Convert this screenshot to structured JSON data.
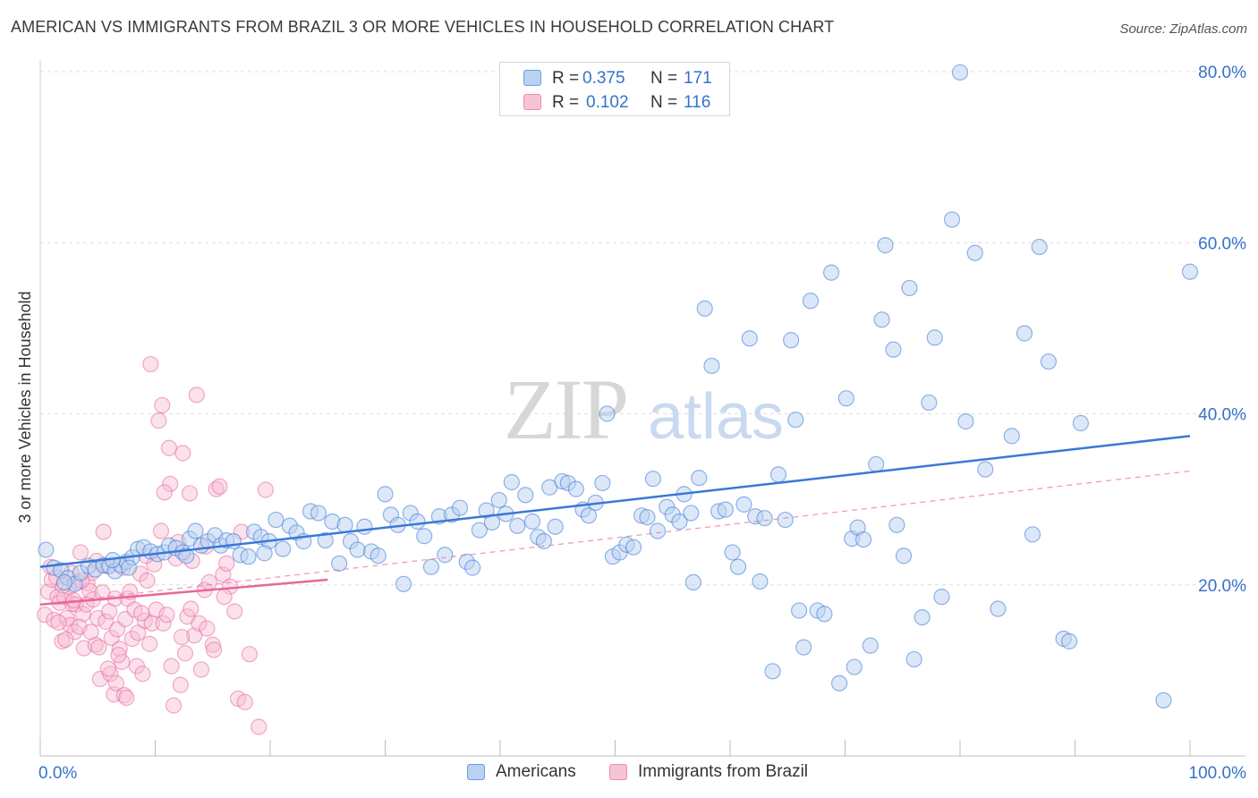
{
  "title": "AMERICAN VS IMMIGRANTS FROM BRAZIL 3 OR MORE VEHICLES IN HOUSEHOLD CORRELATION CHART",
  "source": "Source: ZipAtlas.com",
  "watermark": {
    "zip": "ZIP",
    "atlas": "atlas"
  },
  "legend": {
    "r_label": "R =",
    "n_label": "N =",
    "americans": {
      "r": "0.375",
      "n": "171"
    },
    "brazil": {
      "r": "0.102",
      "n": "116"
    }
  },
  "colors": {
    "blue": "#3a78d6",
    "blue_fill": "#b9d1f2",
    "pink": "#e8679a",
    "pink_fill": "#f6bdd2",
    "value_text": "#3572c9"
  },
  "chart_data": {
    "type": "scatter",
    "ylabel": "3 or more Vehicles in Household",
    "xlabel": "",
    "xlim": [
      0,
      100
    ],
    "ylim": [
      0,
      80
    ],
    "x_tick_labels": [
      "0.0%",
      "100.0%"
    ],
    "y_tick_labels": [
      "20.0%",
      "40.0%",
      "60.0%",
      "80.0%"
    ],
    "y_ticks": [
      20,
      40,
      60,
      80
    ],
    "grid": true,
    "legend_position": "top-center",
    "series": [
      {
        "name": "Americans",
        "color": "#3a78d6",
        "trend": [
          [
            0,
            22.1
          ],
          [
            100,
            37.4
          ]
        ],
        "points": [
          [
            0.5,
            24.1
          ],
          [
            1.2,
            22
          ],
          [
            1.8,
            21.7
          ],
          [
            2.4,
            20.8
          ],
          [
            3,
            20.1
          ],
          [
            3.5,
            21.4
          ],
          [
            4.2,
            22.2
          ],
          [
            4.8,
            21.8
          ],
          [
            5.5,
            22.3
          ],
          [
            6,
            22.2
          ],
          [
            6.5,
            21.6
          ],
          [
            7,
            22.3
          ],
          [
            7.5,
            22.7
          ],
          [
            8,
            23.2
          ],
          [
            8.5,
            24.2
          ],
          [
            9,
            24.4
          ],
          [
            9.6,
            23.9
          ],
          [
            10.2,
            23.6
          ],
          [
            10.8,
            23.8
          ],
          [
            11.2,
            24.6
          ],
          [
            11.8,
            24.3
          ],
          [
            12.4,
            23.8
          ],
          [
            13,
            25.4
          ],
          [
            13.5,
            26.3
          ],
          [
            14,
            24.6
          ],
          [
            14.6,
            25.1
          ],
          [
            15.2,
            25.8
          ],
          [
            15.7,
            24.6
          ],
          [
            16.2,
            25.2
          ],
          [
            16.8,
            25.1
          ],
          [
            17.4,
            23.5
          ],
          [
            18.1,
            23.3
          ],
          [
            18.6,
            26.2
          ],
          [
            19.2,
            25.6
          ],
          [
            19.9,
            25.1
          ],
          [
            20.5,
            27.6
          ],
          [
            21.1,
            24.2
          ],
          [
            21.7,
            26.9
          ],
          [
            22.3,
            26.1
          ],
          [
            22.9,
            25.1
          ],
          [
            23.5,
            28.6
          ],
          [
            24.2,
            28.4
          ],
          [
            24.8,
            25.2
          ],
          [
            25.4,
            27.4
          ],
          [
            26,
            22.5
          ],
          [
            26.5,
            27
          ],
          [
            27,
            25.1
          ],
          [
            27.6,
            24.1
          ],
          [
            28.2,
            26.8
          ],
          [
            28.8,
            23.9
          ],
          [
            29.4,
            23.4
          ],
          [
            30,
            30.6
          ],
          [
            30.5,
            28.2
          ],
          [
            31.1,
            27
          ],
          [
            31.6,
            20.1
          ],
          [
            32.2,
            28.4
          ],
          [
            32.8,
            27.4
          ],
          [
            33.4,
            25.7
          ],
          [
            34,
            22.1
          ],
          [
            34.7,
            28
          ],
          [
            35.2,
            23.5
          ],
          [
            35.8,
            28.2
          ],
          [
            36.5,
            29
          ],
          [
            37.1,
            22.7
          ],
          [
            37.6,
            22
          ],
          [
            38.2,
            26.4
          ],
          [
            38.8,
            28.7
          ],
          [
            39.3,
            27.3
          ],
          [
            39.9,
            29.9
          ],
          [
            40.5,
            28.3
          ],
          [
            41,
            32
          ],
          [
            41.5,
            26.9
          ],
          [
            42.2,
            30.5
          ],
          [
            42.8,
            27.4
          ],
          [
            43.3,
            25.6
          ],
          [
            43.8,
            25.1
          ],
          [
            44.3,
            31.4
          ],
          [
            44.8,
            26.8
          ],
          [
            45.4,
            32.1
          ],
          [
            45.9,
            31.9
          ],
          [
            46.6,
            31.2
          ],
          [
            47.2,
            28.8
          ],
          [
            47.7,
            28.1
          ],
          [
            48.3,
            29.6
          ],
          [
            48.9,
            31.9
          ],
          [
            49.3,
            40
          ],
          [
            49.8,
            23.3
          ],
          [
            50.4,
            23.8
          ],
          [
            51,
            24.7
          ],
          [
            51.6,
            24.4
          ],
          [
            52.3,
            28.1
          ],
          [
            52.8,
            27.9
          ],
          [
            53.3,
            32.4
          ],
          [
            53.7,
            26.3
          ],
          [
            54.5,
            29.1
          ],
          [
            55,
            28.2
          ],
          [
            55.6,
            27.4
          ],
          [
            56,
            30.6
          ],
          [
            56.6,
            28.4
          ],
          [
            56.8,
            20.3
          ],
          [
            57.3,
            32.5
          ],
          [
            57.8,
            52.3
          ],
          [
            58.4,
            45.6
          ],
          [
            59,
            28.6
          ],
          [
            59.6,
            28.8
          ],
          [
            60.2,
            23.8
          ],
          [
            60.7,
            22.1
          ],
          [
            61.2,
            29.4
          ],
          [
            61.7,
            48.8
          ],
          [
            62.2,
            28
          ],
          [
            62.6,
            20.4
          ],
          [
            63,
            27.8
          ],
          [
            63.7,
            9.9
          ],
          [
            64.2,
            32.9
          ],
          [
            64.8,
            27.6
          ],
          [
            65.3,
            48.6
          ],
          [
            65.7,
            39.3
          ],
          [
            66,
            17
          ],
          [
            66.4,
            12.7
          ],
          [
            67,
            53.2
          ],
          [
            67.6,
            17
          ],
          [
            68.2,
            16.6
          ],
          [
            68.8,
            56.5
          ],
          [
            69.5,
            8.5
          ],
          [
            70.1,
            41.8
          ],
          [
            70.6,
            25.4
          ],
          [
            70.8,
            10.4
          ],
          [
            71.1,
            26.7
          ],
          [
            71.6,
            25.3
          ],
          [
            72.2,
            12.9
          ],
          [
            72.7,
            34.1
          ],
          [
            73.2,
            51
          ],
          [
            73.5,
            59.7
          ],
          [
            74.2,
            47.5
          ],
          [
            74.5,
            27
          ],
          [
            75.1,
            23.4
          ],
          [
            75.6,
            54.7
          ],
          [
            76,
            11.3
          ],
          [
            76.7,
            16.2
          ],
          [
            77.3,
            41.3
          ],
          [
            77.8,
            48.9
          ],
          [
            78.4,
            18.6
          ],
          [
            79.3,
            62.7
          ],
          [
            80,
            79.9
          ],
          [
            80.5,
            39.1
          ],
          [
            81.3,
            58.8
          ],
          [
            82.2,
            33.5
          ],
          [
            83.3,
            17.2
          ],
          [
            84.5,
            37.4
          ],
          [
            85.6,
            49.4
          ],
          [
            86.3,
            25.9
          ],
          [
            86.9,
            59.5
          ],
          [
            87.7,
            46.1
          ],
          [
            89,
            13.7
          ],
          [
            89.5,
            13.4
          ],
          [
            90.5,
            38.9
          ],
          [
            97.7,
            6.5
          ],
          [
            100,
            56.6
          ],
          [
            2.1,
            20.3
          ],
          [
            7.7,
            22
          ],
          [
            12.7,
            23.4
          ],
          [
            6.3,
            22.9
          ],
          [
            19.5,
            23.7
          ]
        ]
      },
      {
        "name": "Immigrants from Brazil",
        "color": "#e8679a",
        "trend": [
          [
            0,
            17.7
          ],
          [
            25,
            20.6
          ]
        ],
        "dashed_trend": [
          [
            0,
            17.7
          ],
          [
            100,
            33.3
          ]
        ],
        "points": [
          [
            0.4,
            16.5
          ],
          [
            0.7,
            19.2
          ],
          [
            1,
            20.6
          ],
          [
            1.2,
            15.9
          ],
          [
            1.5,
            18.6
          ],
          [
            1.7,
            17.9
          ],
          [
            1.9,
            13.4
          ],
          [
            2.1,
            18.6
          ],
          [
            2.3,
            16.1
          ],
          [
            2.5,
            19.7
          ],
          [
            2.6,
            15.3
          ],
          [
            2.8,
            17.8
          ],
          [
            3,
            14.5
          ],
          [
            3.1,
            17.7
          ],
          [
            3.3,
            20.3
          ],
          [
            3.5,
            23.8
          ],
          [
            3.7,
            16.6
          ],
          [
            3.8,
            12.6
          ],
          [
            4,
            17.7
          ],
          [
            4.1,
            20.2
          ],
          [
            4.3,
            19.3
          ],
          [
            4.5,
            21.4
          ],
          [
            4.6,
            18.3
          ],
          [
            4.8,
            13
          ],
          [
            5,
            16.1
          ],
          [
            5.2,
            9
          ],
          [
            5.4,
            19.1
          ],
          [
            5.5,
            26.2
          ],
          [
            5.7,
            15.7
          ],
          [
            5.8,
            22.2
          ],
          [
            6,
            16.9
          ],
          [
            6.2,
            13.8
          ],
          [
            6.4,
            7.2
          ],
          [
            6.5,
            18.4
          ],
          [
            6.7,
            14.8
          ],
          [
            6.9,
            12.5
          ],
          [
            7.1,
            11
          ],
          [
            7.2,
            22
          ],
          [
            7.4,
            16
          ],
          [
            7.6,
            18.4
          ],
          [
            7.8,
            19.2
          ],
          [
            8,
            13.7
          ],
          [
            8.2,
            17.1
          ],
          [
            8.4,
            10.5
          ],
          [
            8.5,
            14.4
          ],
          [
            8.7,
            21.3
          ],
          [
            8.9,
            9.6
          ],
          [
            9.1,
            15.8
          ],
          [
            9.3,
            20.5
          ],
          [
            9.5,
            13.1
          ],
          [
            9.7,
            15.5
          ],
          [
            9.9,
            22.4
          ],
          [
            10.1,
            17.1
          ],
          [
            10.3,
            39.2
          ],
          [
            10.5,
            26.3
          ],
          [
            10.7,
            15.5
          ],
          [
            11,
            16.5
          ],
          [
            11.2,
            36
          ],
          [
            11.4,
            10.5
          ],
          [
            11.6,
            5.9
          ],
          [
            11.8,
            23.1
          ],
          [
            12,
            25
          ],
          [
            12.2,
            8.3
          ],
          [
            12.4,
            35.4
          ],
          [
            12.6,
            12
          ],
          [
            12.8,
            16.3
          ],
          [
            13,
            30.7
          ],
          [
            13.2,
            22.8
          ],
          [
            13.4,
            14.1
          ],
          [
            13.6,
            42.2
          ],
          [
            13.8,
            15.5
          ],
          [
            14,
            10.1
          ],
          [
            14.3,
            19.4
          ],
          [
            14.5,
            14.9
          ],
          [
            14.7,
            20.3
          ],
          [
            15,
            13
          ],
          [
            15.3,
            31.2
          ],
          [
            15.6,
            31.5
          ],
          [
            15.9,
            21.2
          ],
          [
            16.2,
            22.5
          ],
          [
            16.5,
            19.8
          ],
          [
            16.9,
            16.9
          ],
          [
            17.2,
            6.7
          ],
          [
            17.5,
            26.2
          ],
          [
            17.8,
            6.3
          ],
          [
            18.2,
            11.9
          ],
          [
            19,
            3.4
          ],
          [
            19.6,
            31.1
          ],
          [
            0.9,
            22.1
          ],
          [
            1.4,
            20.9
          ],
          [
            2,
            19.9
          ],
          [
            2.7,
            21.4
          ],
          [
            3.4,
            15.1
          ],
          [
            4.9,
            22.8
          ],
          [
            6.1,
            9.6
          ],
          [
            6.8,
            11.8
          ],
          [
            7.3,
            7.1
          ],
          [
            8.8,
            16.7
          ],
          [
            9.6,
            45.8
          ],
          [
            10.6,
            41
          ],
          [
            11.3,
            31.8
          ],
          [
            1.6,
            15.6
          ],
          [
            2.2,
            13.6
          ],
          [
            2.9,
            18.2
          ],
          [
            3.6,
            20.5
          ],
          [
            4.4,
            14.5
          ],
          [
            5.1,
            12.7
          ],
          [
            5.9,
            10.2
          ],
          [
            6.6,
            8.5
          ],
          [
            7.5,
            6.8
          ],
          [
            9.2,
            23.4
          ],
          [
            10.8,
            30.8
          ],
          [
            12.3,
            13.9
          ],
          [
            13.1,
            17.2
          ],
          [
            14.4,
            24.5
          ],
          [
            15.1,
            12.4
          ],
          [
            16,
            18.6
          ]
        ]
      }
    ]
  }
}
